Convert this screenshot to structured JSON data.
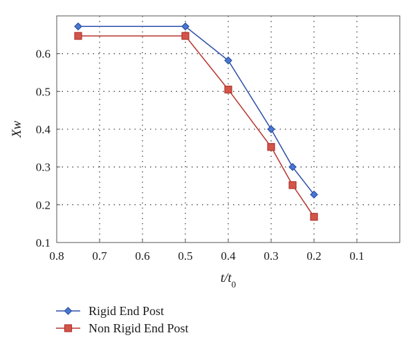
{
  "chart_data": {
    "type": "line",
    "xlabel": "t/t",
    "xlabel_subscript": "0",
    "ylabel": "Xw",
    "xlim": [
      0.8,
      0.0
    ],
    "ylim": [
      0.1,
      0.7
    ],
    "x_reversed": true,
    "x_ticks": [
      0.8,
      0.7,
      0.6,
      0.5,
      0.4,
      0.3,
      0.2,
      0.1
    ],
    "x_tick_labels": [
      "0.8",
      "0.7",
      "0.6",
      "0.5",
      "0.4",
      "0.3",
      "0.2",
      "0.1"
    ],
    "y_ticks": [
      0.1,
      0.2,
      0.3,
      0.4,
      0.5,
      0.6
    ],
    "y_tick_labels": [
      "0.1",
      "0.2",
      "0.3",
      "0.4",
      "0.5",
      "0.6"
    ],
    "grid": true,
    "legend_placement": "bottom-left, below plot",
    "series": [
      {
        "name": "Rigid End Post",
        "color": "#2b4fa8",
        "marker": "diamond",
        "x": [
          0.75,
          0.5,
          0.4,
          0.3,
          0.25,
          0.2
        ],
        "y": [
          0.672,
          0.672,
          0.582,
          0.4,
          0.3,
          0.227
        ]
      },
      {
        "name": "Non Rigid End Post",
        "color": "#b5332c",
        "marker": "square",
        "x": [
          0.75,
          0.5,
          0.4,
          0.3,
          0.25,
          0.2
        ],
        "y": [
          0.647,
          0.647,
          0.505,
          0.353,
          0.252,
          0.168
        ]
      }
    ]
  }
}
